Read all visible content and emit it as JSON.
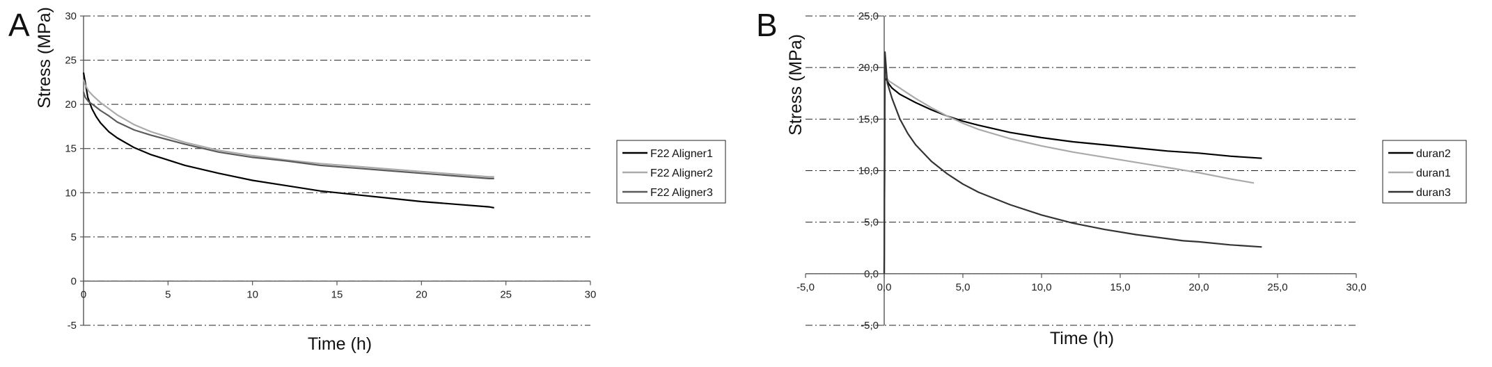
{
  "chart_data": [
    {
      "panel_label": "A",
      "type": "line",
      "ylabel": "Stress (MPa)",
      "xlabel": "Time (h)",
      "xlim": [
        0,
        30
      ],
      "ylim": [
        -5,
        30
      ],
      "x_ticks": [
        0,
        5,
        10,
        15,
        20,
        25,
        30
      ],
      "y_ticks": [
        -5,
        0,
        5,
        10,
        15,
        20,
        25,
        30
      ],
      "tick_decimals": 0,
      "grid": "horizontal dash-dot",
      "legend_position": "right",
      "series": [
        {
          "name": "F22 Aligner1",
          "color": "#000000",
          "x": [
            0,
            0.1,
            0.25,
            0.5,
            0.75,
            1,
            1.5,
            2,
            3,
            4,
            5,
            6,
            8,
            10,
            12,
            14,
            16,
            18,
            20,
            22,
            24,
            24.3
          ],
          "y": [
            23.6,
            22.5,
            20.8,
            19.5,
            18.6,
            17.9,
            16.9,
            16.2,
            15.1,
            14.3,
            13.7,
            13.1,
            12.2,
            11.4,
            10.8,
            10.2,
            9.8,
            9.4,
            9.0,
            8.7,
            8.4,
            8.3
          ]
        },
        {
          "name": "F22 Aligner2",
          "color": "#aaaaaa",
          "x": [
            0,
            0.1,
            0.3,
            0.6,
            1,
            1.5,
            2,
            3,
            4,
            5,
            6,
            8,
            10,
            12,
            14,
            16,
            18,
            20,
            22,
            24,
            24.3
          ],
          "y": [
            22.8,
            22.2,
            21.5,
            20.9,
            20.2,
            19.5,
            18.8,
            17.7,
            16.9,
            16.3,
            15.7,
            14.8,
            14.2,
            13.7,
            13.3,
            13.0,
            12.7,
            12.4,
            12.1,
            11.8,
            11.8
          ]
        },
        {
          "name": "F22 Aligner3",
          "color": "#5a5a5a",
          "x": [
            0,
            0.1,
            0.3,
            0.6,
            1,
            1.5,
            2,
            3,
            4,
            5,
            6,
            8,
            10,
            12,
            14,
            16,
            18,
            20,
            22,
            24,
            24.3
          ],
          "y": [
            21.4,
            20.8,
            20.3,
            19.9,
            19.3,
            18.7,
            18.0,
            17.1,
            16.5,
            16.0,
            15.5,
            14.6,
            14.0,
            13.6,
            13.1,
            12.8,
            12.5,
            12.2,
            11.9,
            11.6,
            11.6
          ]
        }
      ]
    },
    {
      "panel_label": "B",
      "type": "line",
      "ylabel": "Stress (MPa)",
      "xlabel": "Time (h)",
      "xlim": [
        -5,
        30
      ],
      "ylim": [
        -5,
        25
      ],
      "x_ticks": [
        -5,
        0,
        5,
        10,
        15,
        20,
        25,
        30
      ],
      "y_ticks": [
        -5,
        0,
        5,
        10,
        15,
        20,
        25
      ],
      "tick_decimals": 1,
      "decimal_separator": ",",
      "grid": "horizontal dash-dot",
      "legend_position": "right",
      "series": [
        {
          "name": "duran2",
          "color": "#000000",
          "x": [
            0,
            0.05,
            0.15,
            0.3,
            0.5,
            1,
            1.5,
            2,
            3,
            4,
            5,
            6,
            8,
            10,
            12,
            14,
            16,
            18,
            20,
            22,
            24
          ],
          "y": [
            0,
            19.8,
            18.8,
            18.4,
            18.0,
            17.4,
            17.0,
            16.6,
            15.9,
            15.3,
            14.8,
            14.4,
            13.7,
            13.2,
            12.8,
            12.5,
            12.2,
            11.9,
            11.7,
            11.4,
            11.2
          ]
        },
        {
          "name": "duran1",
          "color": "#aaaaaa",
          "x": [
            0,
            0.05,
            0.15,
            0.3,
            0.5,
            1,
            1.5,
            2,
            3,
            4,
            5,
            6,
            8,
            10,
            12,
            14,
            16,
            18,
            20,
            22,
            23.5
          ],
          "y": [
            0,
            19.5,
            19.0,
            18.7,
            18.5,
            18.0,
            17.5,
            17.0,
            16.1,
            15.3,
            14.6,
            14.0,
            13.1,
            12.4,
            11.8,
            11.3,
            10.8,
            10.3,
            9.8,
            9.2,
            8.8
          ]
        },
        {
          "name": "duran3",
          "color": "#333333",
          "x": [
            0,
            0.05,
            0.2,
            0.5,
            1,
            1.5,
            2,
            3,
            4,
            5,
            6,
            8,
            10,
            12,
            14,
            16,
            18,
            19,
            20,
            22,
            24
          ],
          "y": [
            0,
            21.5,
            18.5,
            17.0,
            15.0,
            13.6,
            12.5,
            10.9,
            9.7,
            8.7,
            7.9,
            6.7,
            5.7,
            4.9,
            4.3,
            3.8,
            3.4,
            3.2,
            3.1,
            2.8,
            2.6
          ]
        }
      ]
    }
  ]
}
